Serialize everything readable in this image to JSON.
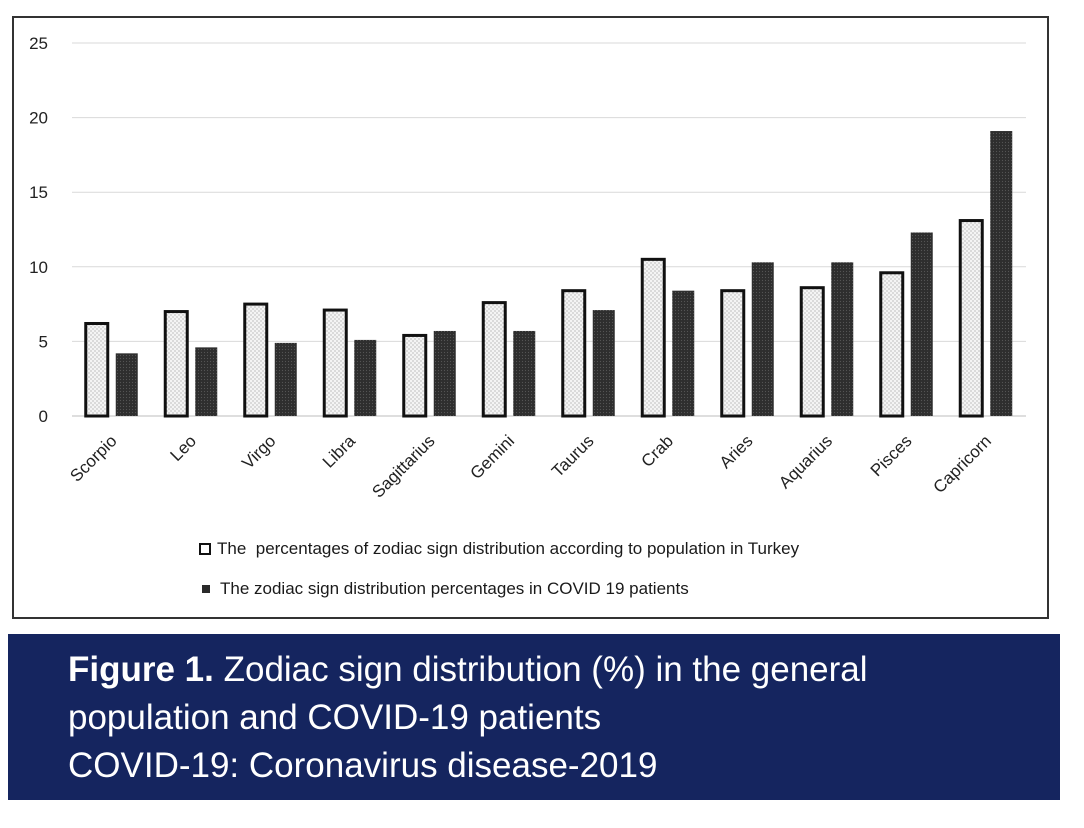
{
  "chart_data": {
    "type": "bar",
    "categories": [
      "Scorpio",
      "Leo",
      "Virgo",
      "Libra",
      "Sagittarius",
      "Gemini",
      "Taurus",
      "Crab",
      "Aries",
      "Aquarius",
      "Pisces",
      "Capricorn"
    ],
    "series": [
      {
        "name": "The  percentages of zodiac sign distribution according to population in Turkey",
        "values": [
          6.2,
          7.0,
          7.5,
          7.1,
          5.4,
          7.6,
          8.4,
          10.5,
          8.4,
          8.6,
          9.6,
          13.1
        ]
      },
      {
        "name": "The zodiac sign distribution percentages in COVID 19 patients",
        "values": [
          4.2,
          4.6,
          4.9,
          5.1,
          5.7,
          5.7,
          7.1,
          8.4,
          10.3,
          10.3,
          12.3,
          19.1
        ]
      }
    ],
    "yticks": [
      "0",
      "5",
      "10",
      "15",
      "20",
      "25"
    ],
    "ylim": [
      0,
      25
    ],
    "grid": true,
    "legend_position": "bottom",
    "colors": {
      "population_fill": "#f2f2f2",
      "population_border": "#111111",
      "covid_fill": "#2f2f2f"
    }
  },
  "caption": {
    "label": "Figure 1.",
    "line1": " Zodiac sign distribution (%) in the general",
    "line2": "population and COVID-19 patients",
    "line3": "COVID-19: Coronavirus disease-2019",
    "background": "#15255f"
  }
}
